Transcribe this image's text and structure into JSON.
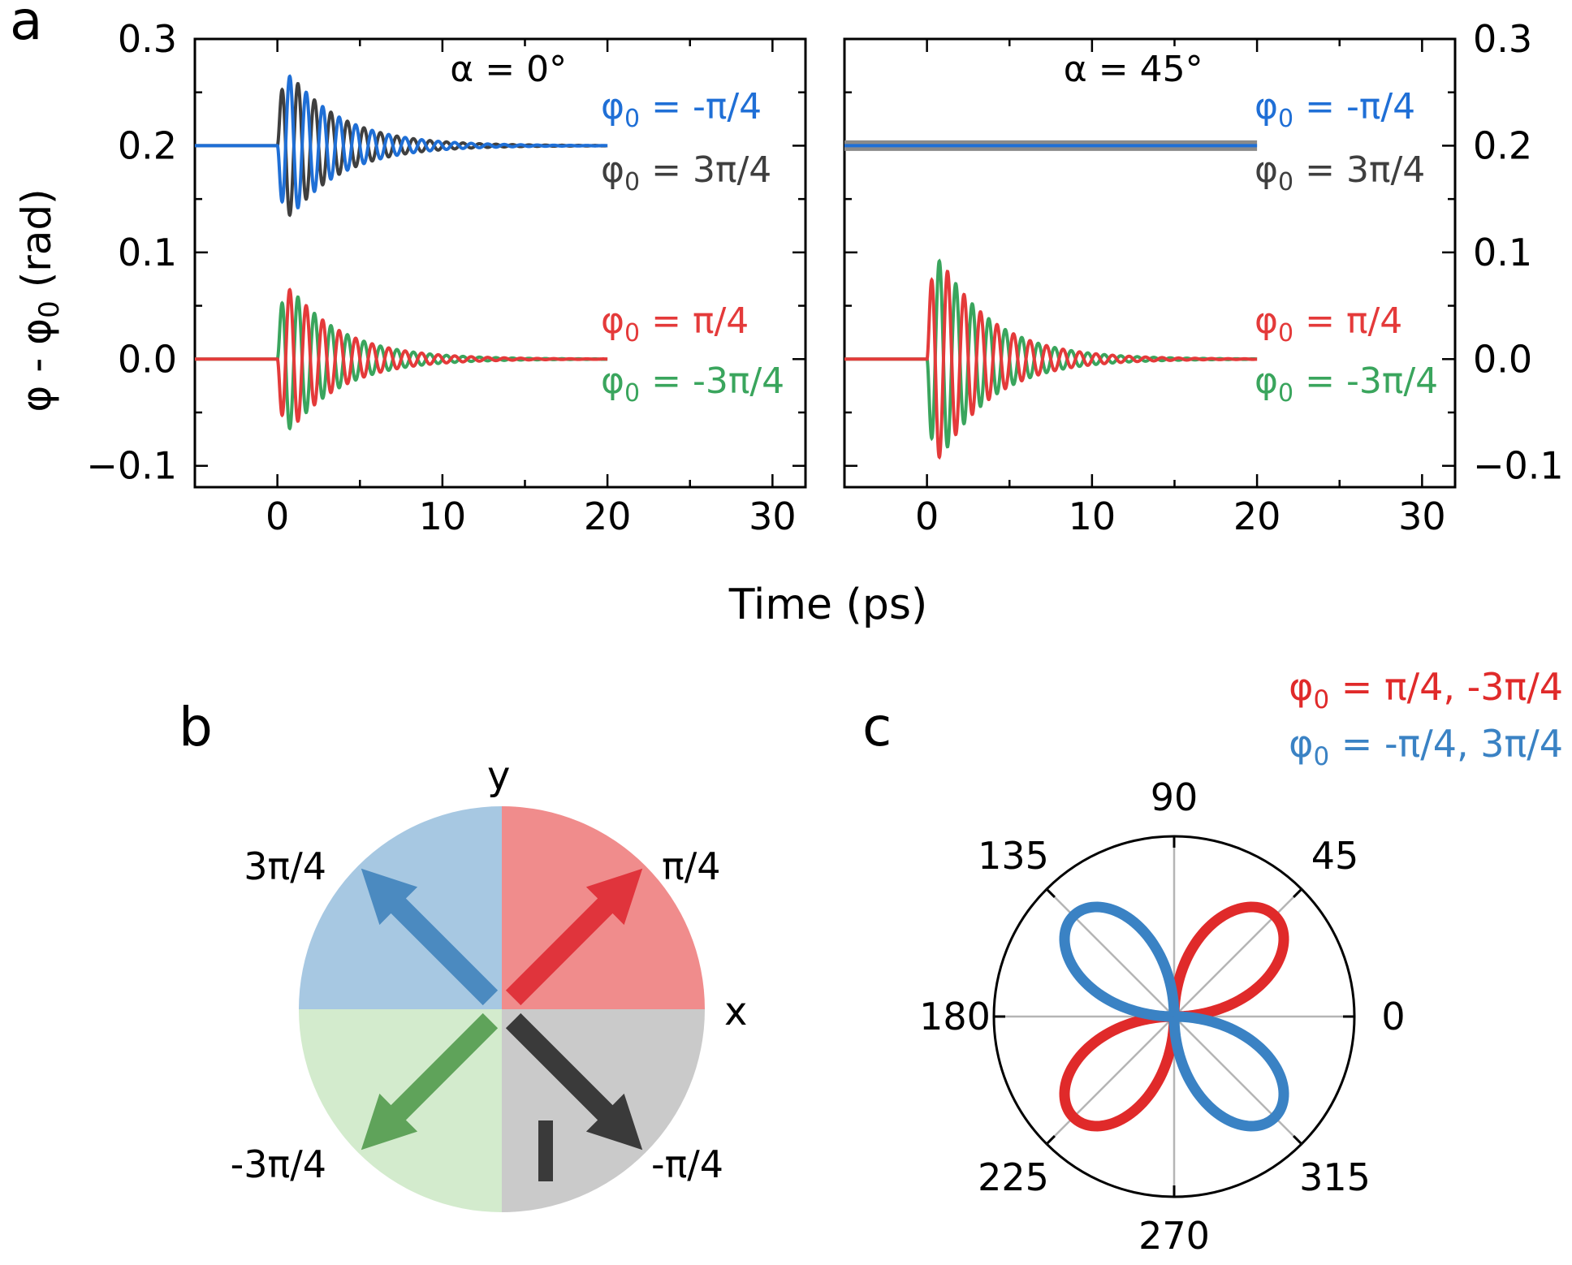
{
  "colors": {
    "blue": "#1f6fd6",
    "black": "#3f3f3f",
    "red": "#e43a3a",
    "green": "#3aa55d",
    "quad_blue": "#a7c8e2",
    "quad_red": "#f08c8c",
    "quad_green": "#d3ebcd",
    "quad_gray": "#cacaca",
    "arrow_blue": "#4b8ac0",
    "arrow_red": "#e0343c",
    "arrow_green": "#5fa35a",
    "arrow_dark": "#3a3a3a",
    "polar_red": "#e02a2a",
    "polar_blue": "#3a82c4"
  },
  "panel_labels": {
    "a": "a",
    "b": "b",
    "c": "c"
  },
  "chart_data": [
    {
      "id": "a-left",
      "type": "line",
      "title": "α = 0°",
      "xlabel": "Time (ps)",
      "ylabel": "φ - φ0 (rad)",
      "xlim": [
        -5,
        32
      ],
      "ylim": [
        -0.12,
        0.3
      ],
      "xticks": [
        0,
        10,
        20,
        30
      ],
      "xtick_labels": [
        "0",
        "10",
        "20",
        "30"
      ],
      "yticks": [
        -0.1,
        0.0,
        0.1,
        0.2,
        0.3
      ],
      "ytick_labels": [
        "−0.1",
        "0.0",
        "0.1",
        "0.2",
        "0.3"
      ],
      "model": {
        "t0": 0,
        "period_ps": 1.0,
        "decay_ps": 3.2,
        "t_end": 20
      },
      "series": [
        {
          "name": "φ0 = 3π/4",
          "color_key": "black",
          "offset": 0.2,
          "amplitude": -0.08,
          "label_base": "φ",
          "label_sub": "0",
          "label_rest": " = 3π/4"
        },
        {
          "name": "φ0 = -π/4",
          "color_key": "blue",
          "offset": 0.2,
          "amplitude": 0.08,
          "label_base": "φ",
          "label_sub": "0",
          "label_rest": " = -π/4"
        },
        {
          "name": "φ0 = -3π/4",
          "color_key": "green",
          "offset": 0.0,
          "amplitude": -0.08,
          "label_base": "φ",
          "label_sub": "0",
          "label_rest": " = -3π/4"
        },
        {
          "name": "φ0 = π/4",
          "color_key": "red",
          "offset": 0.0,
          "amplitude": 0.08,
          "label_base": "φ",
          "label_sub": "0",
          "label_rest": " = π/4"
        }
      ]
    },
    {
      "id": "a-right",
      "type": "line",
      "title": "α = 45°",
      "xlabel": "Time (ps)",
      "ylabel": "",
      "xlim": [
        -5,
        32
      ],
      "ylim": [
        -0.12,
        0.3
      ],
      "xticks": [
        0,
        10,
        20,
        30
      ],
      "xtick_labels": [
        "0",
        "10",
        "20",
        "30"
      ],
      "yticks": [
        -0.1,
        0.0,
        0.1,
        0.2,
        0.3
      ],
      "ytick_labels": [
        "−0.1",
        "0.0",
        "0.1",
        "0.2",
        "0.3"
      ],
      "model": {
        "t0": 0,
        "period_ps": 1.0,
        "decay_ps": 3.2,
        "t_end": 20
      },
      "series": [
        {
          "name": "φ0 = 3π/4",
          "color_key": "black",
          "offset": 0.2,
          "amplitude": 0.0,
          "label_base": "φ",
          "label_sub": "0",
          "label_rest": " = 3π/4"
        },
        {
          "name": "φ0 = -π/4",
          "color_key": "blue",
          "offset": 0.2,
          "amplitude": 0.0,
          "label_base": "φ",
          "label_sub": "0",
          "label_rest": " = -π/4"
        },
        {
          "name": "φ0 = -3π/4",
          "color_key": "green",
          "offset": 0.0,
          "amplitude": 0.113,
          "label_base": "φ",
          "label_sub": "0",
          "label_rest": " = -3π/4"
        },
        {
          "name": "φ0 = π/4",
          "color_key": "red",
          "offset": 0.0,
          "amplitude": -0.113,
          "label_base": "φ",
          "label_sub": "0",
          "label_rest": " = π/4"
        }
      ]
    },
    {
      "id": "b",
      "type": "diagram",
      "axis_labels": {
        "x": "x",
        "y": "y"
      },
      "arrows": [
        {
          "name": "π/4",
          "angle_deg": 45,
          "color_key": "arrow_red"
        },
        {
          "name": "3π/4",
          "angle_deg": 135,
          "color_key": "arrow_blue"
        },
        {
          "name": "-3π/4",
          "angle_deg": 225,
          "color_key": "arrow_green"
        },
        {
          "name": "-π/4",
          "angle_deg": 315,
          "color_key": "arrow_dark"
        }
      ],
      "quadrants": [
        {
          "quadrant": "I",
          "color_key": "quad_red"
        },
        {
          "quadrant": "II",
          "color_key": "quad_blue"
        },
        {
          "quadrant": "III",
          "color_key": "quad_green"
        },
        {
          "quadrant": "IV",
          "color_key": "quad_gray"
        }
      ],
      "marker": "I"
    },
    {
      "id": "c",
      "type": "polar",
      "angle_ticks": [
        0,
        45,
        90,
        135,
        180,
        225,
        270,
        315
      ],
      "angle_tick_labels": [
        "0",
        "45",
        "90",
        "135",
        "180",
        "225",
        "270",
        "315"
      ],
      "series": [
        {
          "name": "φ0 = π/4, -3π/4",
          "color_key": "polar_red",
          "function": "|sin(2θ)|",
          "lobes_deg": [
            45,
            225
          ],
          "label_base": "φ",
          "label_sub": "0",
          "label_rest": " = π/4, -3π/4"
        },
        {
          "name": "φ0 = -π/4, 3π/4",
          "color_key": "polar_blue",
          "function": "|sin(2θ)|",
          "lobes_deg": [
            135,
            315
          ],
          "label_base": "φ",
          "label_sub": "0",
          "label_rest": " = -π/4, 3π/4"
        }
      ]
    }
  ]
}
